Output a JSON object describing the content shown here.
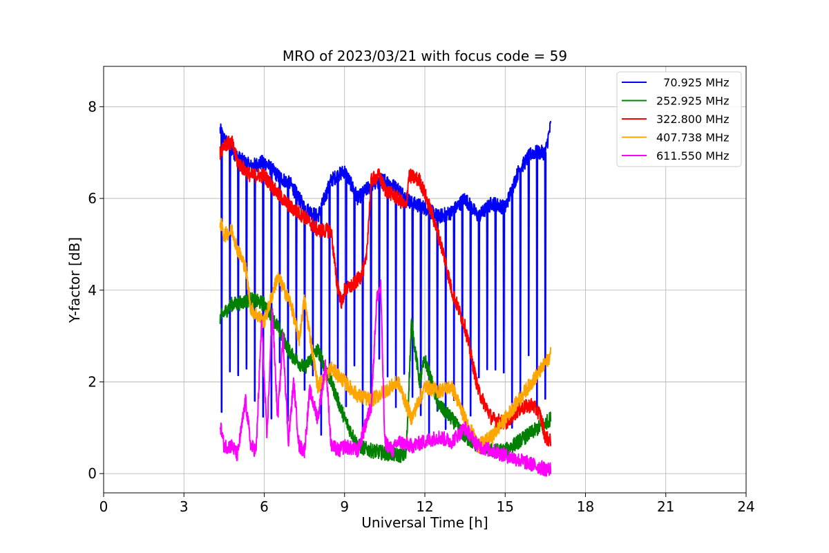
{
  "chart_data": {
    "type": "line",
    "title": "MRO of 2023/03/21 with focus code = 59",
    "xlabel": "Universal Time [h]",
    "ylabel": "Y-factor [dB]",
    "xlim": [
      0,
      24
    ],
    "ylim": [
      -0.42,
      8.88
    ],
    "xticks": [
      0,
      3,
      6,
      9,
      12,
      15,
      18,
      21,
      24
    ],
    "yticks": [
      0,
      2,
      4,
      6,
      8
    ],
    "grid": true,
    "legend_position": "top-right",
    "series": [
      {
        "name": "  70.925 MHz",
        "color": "#0000ff",
        "x": [
          4.35,
          4.5,
          5.0,
          5.5,
          6.0,
          6.5,
          7.0,
          7.5,
          8.0,
          8.5,
          9.0,
          9.5,
          10.0,
          10.5,
          11.0,
          11.5,
          12.0,
          12.5,
          13.0,
          13.5,
          14.0,
          14.5,
          15.0,
          15.5,
          16.0,
          16.5,
          16.7
        ],
        "y": [
          7.5,
          7.3,
          6.9,
          6.7,
          6.8,
          6.5,
          6.3,
          5.8,
          5.6,
          6.4,
          6.6,
          6.0,
          6.3,
          6.4,
          6.2,
          5.9,
          5.8,
          5.6,
          5.7,
          6.0,
          5.6,
          5.9,
          5.8,
          6.6,
          7.0,
          7.0,
          7.6
        ],
        "dip_interval": 0.31,
        "dip_start": 4.4,
        "dip_end": 16.65,
        "dip_level": 2.0
      },
      {
        "name": "252.925 MHz",
        "color": "#008000",
        "x": [
          4.35,
          4.5,
          4.8,
          5.0,
          5.5,
          6.0,
          6.5,
          7.0,
          7.5,
          8.0,
          8.5,
          9.0,
          9.5,
          10.0,
          10.5,
          11.0,
          11.3,
          11.5,
          11.8,
          12.0,
          12.5,
          13.0,
          13.5,
          14.0,
          14.5,
          15.0,
          15.5,
          16.0,
          16.5,
          16.7
        ],
        "y": [
          3.4,
          3.5,
          3.7,
          3.7,
          3.8,
          3.7,
          3.2,
          2.6,
          2.3,
          2.7,
          2.0,
          1.2,
          0.6,
          0.5,
          0.45,
          0.4,
          0.4,
          3.3,
          2.0,
          2.5,
          1.5,
          1.2,
          0.8,
          0.6,
          0.5,
          0.5,
          0.7,
          0.9,
          1.1,
          1.2
        ]
      },
      {
        "name": "322.800 MHz",
        "color": "#ff0000",
        "x": [
          4.35,
          4.5,
          4.8,
          5.0,
          5.3,
          5.5,
          6.0,
          6.5,
          7.0,
          7.5,
          8.0,
          8.5,
          8.7,
          8.9,
          9.0,
          9.3,
          9.6,
          9.8,
          10.0,
          10.3,
          10.5,
          11.0,
          11.3,
          11.4,
          11.8,
          12.0,
          12.3,
          12.7,
          13.0,
          13.5,
          14.0,
          14.5,
          15.0,
          15.5,
          16.0,
          16.3,
          16.5,
          16.7
        ],
        "y": [
          7.0,
          7.2,
          7.2,
          6.8,
          6.6,
          6.5,
          6.5,
          6.1,
          5.8,
          5.6,
          5.3,
          5.3,
          4.2,
          3.7,
          4.0,
          4.1,
          4.3,
          4.6,
          6.4,
          6.5,
          6.2,
          6.0,
          5.8,
          6.5,
          6.4,
          6.1,
          5.6,
          4.8,
          4.0,
          3.2,
          1.8,
          1.2,
          1.1,
          1.4,
          1.5,
          1.3,
          0.8,
          0.7
        ]
      },
      {
        "name": "407.738 MHz",
        "color": "#ffa500",
        "x": [
          4.35,
          4.5,
          4.8,
          5.0,
          5.3,
          5.5,
          6.0,
          6.5,
          7.0,
          7.3,
          7.5,
          8.0,
          8.5,
          9.0,
          9.5,
          10.0,
          10.5,
          11.0,
          11.5,
          12.0,
          12.5,
          13.0,
          13.5,
          14.0,
          14.5,
          15.0,
          15.5,
          16.0,
          16.5,
          16.7
        ],
        "y": [
          5.5,
          5.2,
          5.3,
          4.9,
          4.5,
          3.6,
          3.3,
          4.3,
          3.7,
          2.9,
          3.8,
          1.9,
          2.3,
          2.0,
          1.7,
          1.6,
          1.8,
          2.0,
          1.2,
          1.9,
          1.8,
          1.9,
          1.2,
          0.6,
          0.8,
          1.2,
          1.6,
          2.0,
          2.4,
          2.6
        ]
      },
      {
        "name": "611.550 MHz",
        "color": "#ff00ff",
        "x": [
          4.35,
          4.5,
          4.8,
          5.0,
          5.3,
          5.5,
          5.7,
          5.9,
          6.1,
          6.3,
          6.5,
          6.7,
          6.9,
          7.1,
          7.3,
          7.5,
          7.7,
          8.0,
          8.3,
          8.5,
          8.8,
          9.0,
          9.5,
          10.0,
          10.2,
          10.35,
          10.5,
          10.8,
          11.0,
          11.5,
          12.0,
          12.5,
          13.0,
          13.5,
          14.0,
          14.5,
          15.0,
          15.5,
          16.0,
          16.5,
          16.7
        ],
        "y": [
          1.1,
          0.6,
          0.6,
          0.4,
          1.6,
          0.6,
          0.5,
          3.3,
          0.8,
          3.6,
          1.2,
          3.0,
          0.7,
          2.0,
          0.6,
          0.5,
          1.8,
          1.2,
          2.4,
          0.6,
          0.5,
          0.6,
          0.5,
          1.5,
          3.8,
          4.1,
          0.7,
          0.5,
          0.7,
          0.6,
          0.7,
          0.8,
          0.7,
          1.0,
          0.6,
          0.5,
          0.4,
          0.3,
          0.2,
          0.1,
          0.1
        ]
      }
    ]
  }
}
